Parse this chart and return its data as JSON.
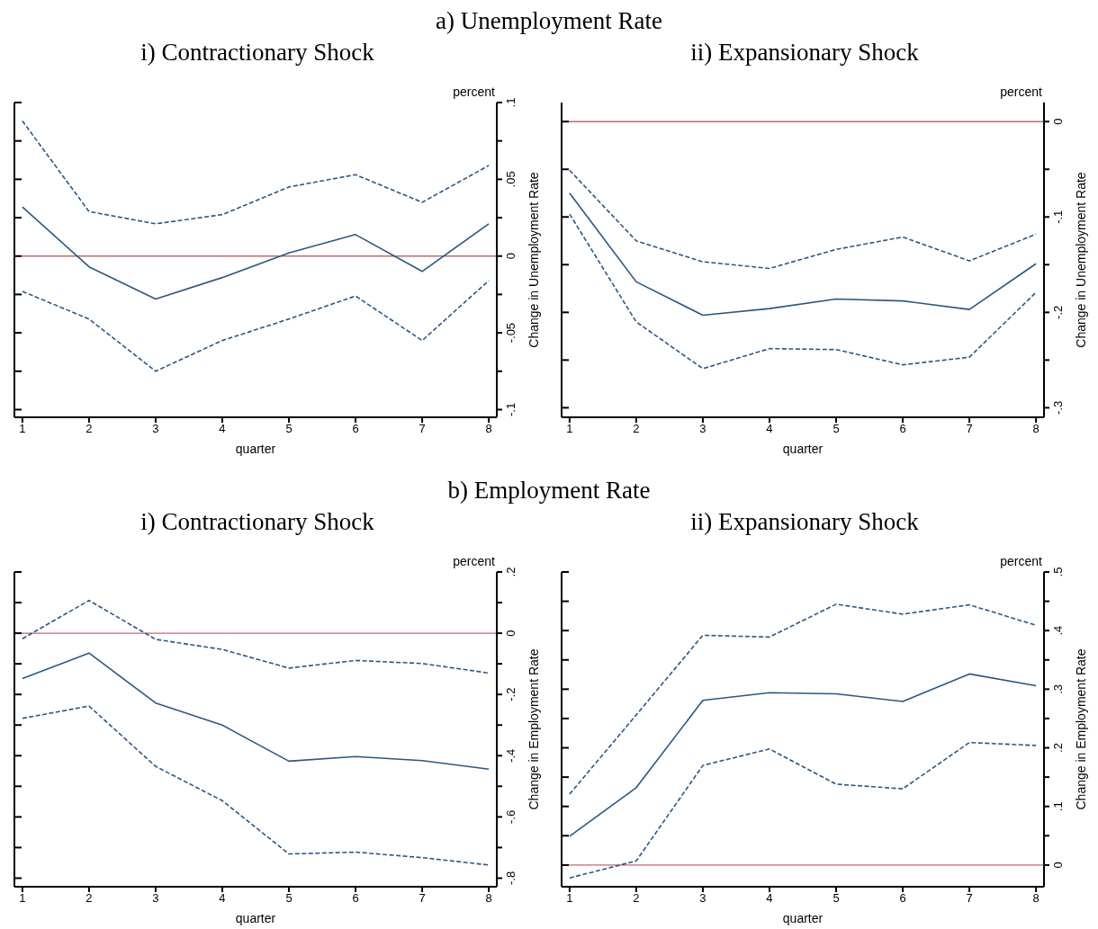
{
  "chart_data": [
    {
      "type": "line",
      "title": "a) Unemployment Rate",
      "subtitle": "i) Contractionary Shock",
      "xlabel": "quarter",
      "ylabel": "Change in Unemployment Rate",
      "annotations": [
        "percent"
      ],
      "marker": "none",
      "x": [
        1,
        2,
        3,
        4,
        5,
        6,
        7,
        8
      ],
      "xlim": [
        0.88,
        8.12
      ],
      "xticks": [
        1,
        2,
        3,
        4,
        5,
        6,
        7,
        8
      ],
      "ylim": [
        -0.105,
        0.1
      ],
      "yticks": [
        {
          "value": -0.1,
          "label": "-.1"
        },
        {
          "value": -0.075,
          "label": null
        },
        {
          "value": -0.05,
          "label": "-.05"
        },
        {
          "value": -0.025,
          "label": null
        },
        {
          "value": 0,
          "label": "0"
        },
        {
          "value": 0.025,
          "label": null
        },
        {
          "value": 0.05,
          "label": ".05"
        },
        {
          "value": 0.075,
          "label": null
        },
        {
          "value": 0.1,
          "label": ".1"
        }
      ],
      "ref_lines": [
        {
          "axis": "y",
          "value": 0,
          "color": "#c06a70"
        }
      ],
      "series": [
        {
          "color": "#2b5784",
          "line_style": "dashed",
          "values": [
            0.088,
            0.029,
            0.021,
            0.027,
            0.045,
            0.053,
            0.035,
            0.059
          ]
        },
        {
          "color": "#2b5784",
          "line_style": "solid",
          "values": [
            0.032,
            -0.007,
            -0.028,
            -0.014,
            0.002,
            0.014,
            -0.01,
            0.021
          ]
        },
        {
          "color": "#2b5784",
          "line_style": "dashed",
          "values": [
            -0.023,
            -0.041,
            -0.075,
            -0.055,
            -0.041,
            -0.026,
            -0.055,
            -0.016
          ]
        }
      ]
    },
    {
      "type": "line",
      "subtitle": "ii) Expansionary Shock",
      "xlabel": "quarter",
      "ylabel": "Change in Unemployment Rate",
      "annotations": [
        "percent"
      ],
      "marker": "none",
      "x": [
        1,
        2,
        3,
        4,
        5,
        6,
        7,
        8
      ],
      "xlim": [
        0.88,
        8.12
      ],
      "xticks": [
        1,
        2,
        3,
        4,
        5,
        6,
        7,
        8
      ],
      "ylim": [
        -0.31,
        0.02
      ],
      "yticks": [
        {
          "value": -0.3,
          "label": "-.3"
        },
        {
          "value": -0.25,
          "label": null
        },
        {
          "value": -0.2,
          "label": "-.2"
        },
        {
          "value": -0.15,
          "label": null
        },
        {
          "value": -0.1,
          "label": "-.1"
        },
        {
          "value": -0.05,
          "label": null
        },
        {
          "value": 0,
          "label": "0"
        }
      ],
      "ref_lines": [
        {
          "axis": "y",
          "value": 0,
          "color": "#c06a70"
        }
      ],
      "series": [
        {
          "color": "#2b5784",
          "line_style": "dashed",
          "values": [
            -0.051,
            -0.125,
            -0.147,
            -0.154,
            -0.134,
            -0.121,
            -0.146,
            -0.118
          ]
        },
        {
          "color": "#2b5784",
          "line_style": "solid",
          "values": [
            -0.075,
            -0.168,
            -0.203,
            -0.196,
            -0.186,
            -0.188,
            -0.197,
            -0.149
          ]
        },
        {
          "color": "#2b5784",
          "line_style": "dashed",
          "values": [
            -0.097,
            -0.21,
            -0.259,
            -0.238,
            -0.239,
            -0.255,
            -0.247,
            -0.179
          ]
        }
      ]
    },
    {
      "type": "line",
      "title": "b) Employment Rate",
      "subtitle": "i) Contractionary Shock",
      "xlabel": "quarter",
      "ylabel": "Change in Employment Rate",
      "annotations": [
        "percent"
      ],
      "marker": "none",
      "x": [
        1,
        2,
        3,
        4,
        5,
        6,
        7,
        8
      ],
      "xlim": [
        0.88,
        8.12
      ],
      "xticks": [
        1,
        2,
        3,
        4,
        5,
        6,
        7,
        8
      ],
      "ylim": [
        -0.828,
        0.2
      ],
      "yticks": [
        {
          "value": -0.8,
          "label": "-.8"
        },
        {
          "value": -0.7,
          "label": null
        },
        {
          "value": -0.6,
          "label": "-.6"
        },
        {
          "value": -0.5,
          "label": null
        },
        {
          "value": -0.4,
          "label": "-.4"
        },
        {
          "value": -0.3,
          "label": null
        },
        {
          "value": -0.2,
          "label": "-.2"
        },
        {
          "value": -0.1,
          "label": null
        },
        {
          "value": 0,
          "label": "0"
        },
        {
          "value": 0.1,
          "label": null
        },
        {
          "value": 0.2,
          "label": ".2"
        }
      ],
      "ref_lines": [
        {
          "axis": "y",
          "value": 0,
          "color": "#c06a70"
        }
      ],
      "series": [
        {
          "color": "#2b5784",
          "line_style": "dashed",
          "values": [
            -0.018,
            0.107,
            -0.02,
            -0.053,
            -0.114,
            -0.089,
            -0.099,
            -0.13
          ]
        },
        {
          "color": "#2b5784",
          "line_style": "solid",
          "values": [
            -0.148,
            -0.065,
            -0.228,
            -0.3,
            -0.418,
            -0.403,
            -0.416,
            -0.444
          ]
        },
        {
          "color": "#2b5784",
          "line_style": "dashed",
          "values": [
            -0.278,
            -0.238,
            -0.435,
            -0.547,
            -0.721,
            -0.715,
            -0.733,
            -0.757
          ]
        }
      ]
    },
    {
      "type": "line",
      "subtitle": "ii) Expansionary Shock",
      "xlabel": "quarter",
      "ylabel": "Change in Employment Rate",
      "annotations": [
        "percent"
      ],
      "marker": "none",
      "x": [
        1,
        2,
        3,
        4,
        5,
        6,
        7,
        8
      ],
      "xlim": [
        0.88,
        8.12
      ],
      "xticks": [
        1,
        2,
        3,
        4,
        5,
        6,
        7,
        8
      ],
      "ylim": [
        -0.037,
        0.5
      ],
      "yticks": [
        {
          "value": 0,
          "label": "0"
        },
        {
          "value": 0.05,
          "label": null
        },
        {
          "value": 0.1,
          "label": ".1"
        },
        {
          "value": 0.15,
          "label": null
        },
        {
          "value": 0.2,
          "label": ".2"
        },
        {
          "value": 0.25,
          "label": null
        },
        {
          "value": 0.3,
          "label": ".3"
        },
        {
          "value": 0.35,
          "label": null
        },
        {
          "value": 0.4,
          "label": ".4"
        },
        {
          "value": 0.45,
          "label": null
        },
        {
          "value": 0.5,
          "label": ".5"
        }
      ],
      "ref_lines": [
        {
          "axis": "y",
          "value": 0,
          "color": "#c06a70"
        }
      ],
      "series": [
        {
          "color": "#2b5784",
          "line_style": "dashed",
          "values": [
            0.121,
            0.256,
            0.392,
            0.389,
            0.445,
            0.428,
            0.444,
            0.409
          ]
        },
        {
          "color": "#2b5784",
          "line_style": "solid",
          "values": [
            0.049,
            0.132,
            0.281,
            0.294,
            0.292,
            0.279,
            0.326,
            0.306
          ]
        },
        {
          "color": "#2b5784",
          "line_style": "dashed",
          "values": [
            -0.022,
            0.007,
            0.17,
            0.198,
            0.138,
            0.13,
            0.209,
            0.204
          ]
        }
      ]
    }
  ]
}
